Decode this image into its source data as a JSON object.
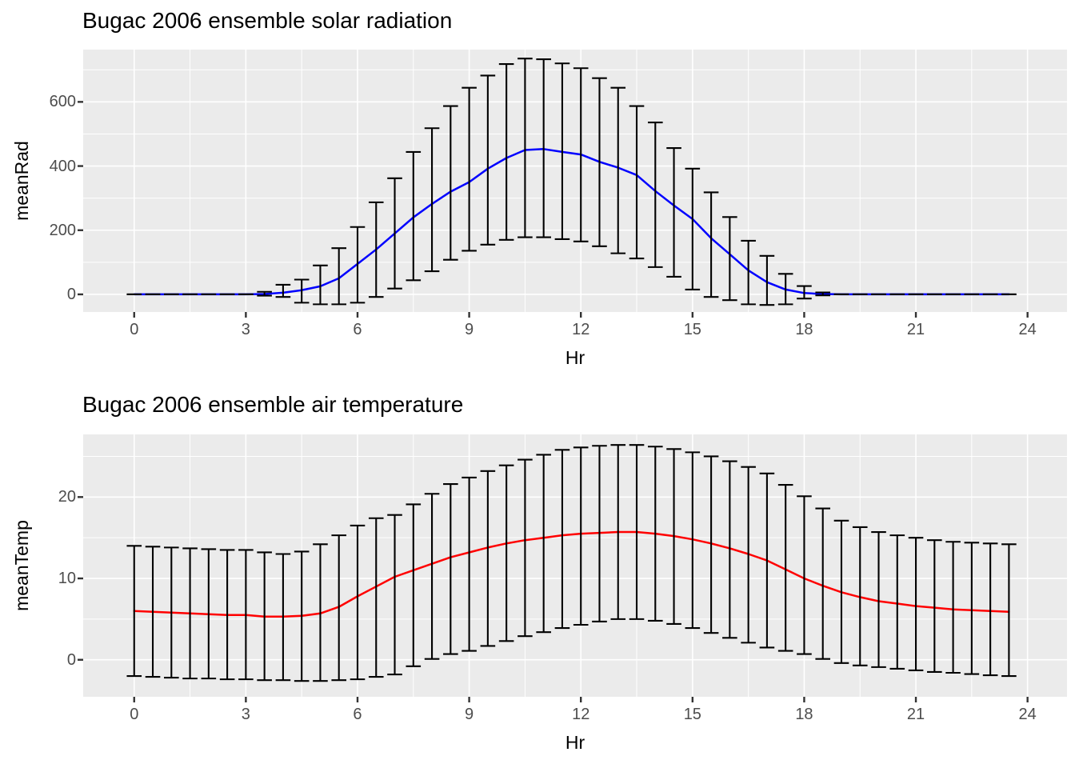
{
  "colors": {
    "page_background": "#FFFFFF",
    "panel_background": "#EBEBEB",
    "grid": "#FFFFFF",
    "error_bar": "#000000",
    "radiation_line": "#0000FF",
    "temperature_line": "#FF0000",
    "tick_label": "#4D4D4D",
    "axis_tick_mark": "#333333",
    "title_text": "#000000"
  },
  "chart_data": [
    {
      "type": "line",
      "title": "Bugac 2006 ensemble solar radiation",
      "xlabel": "Hr",
      "ylabel": "meanRad",
      "legend": "none",
      "grid": true,
      "x_ticks": [
        0,
        3,
        6,
        9,
        12,
        15,
        18,
        21,
        24
      ],
      "x_minor_ticks": [
        1.5,
        4.5,
        7.5,
        10.5,
        13.5,
        16.5,
        19.5,
        22.5
      ],
      "y_ticks": [
        0,
        200,
        400,
        600
      ],
      "y_minor_ticks": [
        100,
        300,
        500,
        700
      ],
      "xlim": [
        -1.37,
        25.06
      ],
      "ylim": [
        -55,
        763
      ],
      "x": [
        0,
        0.5,
        1,
        1.5,
        2,
        2.5,
        3,
        3.5,
        4,
        4.5,
        5,
        5.5,
        6,
        6.5,
        7,
        7.5,
        8,
        8.5,
        9,
        9.5,
        10,
        10.5,
        11,
        11.5,
        12,
        12.5,
        13,
        13.5,
        14,
        14.5,
        15,
        15.5,
        16,
        16.5,
        17,
        17.5,
        18,
        18.5,
        19,
        19.5,
        20,
        20.5,
        21,
        21.5,
        22,
        22.5,
        23,
        23.5
      ],
      "mean": [
        0,
        0,
        0,
        0,
        0,
        0,
        0,
        1,
        5,
        13,
        25,
        50,
        95,
        140,
        190,
        240,
        282,
        320,
        350,
        392,
        425,
        450,
        453,
        444,
        436,
        413,
        395,
        372,
        322,
        277,
        235,
        175,
        125,
        75,
        38,
        15,
        4,
        1,
        0,
        0,
        0,
        0,
        0,
        0,
        0,
        0,
        0,
        0
      ],
      "ymax": [
        0,
        0,
        0,
        0,
        0,
        0,
        0,
        8,
        30,
        46,
        90,
        144,
        210,
        287,
        362,
        444,
        518,
        587,
        644,
        682,
        718,
        735,
        733,
        720,
        705,
        674,
        644,
        587,
        536,
        456,
        392,
        318,
        241,
        167,
        120,
        64,
        26,
        6,
        0,
        0,
        0,
        0,
        0,
        0,
        0,
        0,
        0,
        0
      ],
      "ymin": [
        0,
        0,
        0,
        0,
        0,
        0,
        0,
        -4,
        -8,
        -26,
        -31,
        -31,
        -26,
        -8,
        18,
        44,
        72,
        108,
        136,
        155,
        170,
        178,
        178,
        172,
        165,
        150,
        128,
        112,
        85,
        55,
        15,
        -8,
        -18,
        -31,
        -33,
        -31,
        -13,
        -3,
        0,
        0,
        0,
        0,
        0,
        0,
        0,
        0,
        0,
        0
      ],
      "line_color": "#0000FF"
    },
    {
      "type": "line",
      "title": "Bugac 2006 ensemble air temperature",
      "xlabel": "Hr",
      "ylabel": "meanTemp",
      "legend": "none",
      "grid": true,
      "x_ticks": [
        0,
        3,
        6,
        9,
        12,
        15,
        18,
        21,
        24
      ],
      "x_minor_ticks": [
        1.5,
        4.5,
        7.5,
        10.5,
        13.5,
        16.5,
        19.5,
        22.5
      ],
      "y_ticks": [
        0,
        10,
        20
      ],
      "y_minor_ticks": [
        5,
        15,
        25
      ],
      "xlim": [
        -1.37,
        25.06
      ],
      "ylim": [
        -4.55,
        27.7
      ],
      "x": [
        0,
        0.5,
        1,
        1.5,
        2,
        2.5,
        3,
        3.5,
        4,
        4.5,
        5,
        5.5,
        6,
        6.5,
        7,
        7.5,
        8,
        8.5,
        9,
        9.5,
        10,
        10.5,
        11,
        11.5,
        12,
        12.5,
        13,
        13.5,
        14,
        14.5,
        15,
        15.5,
        16,
        16.5,
        17,
        17.5,
        18,
        18.5,
        19,
        19.5,
        20,
        20.5,
        21,
        21.5,
        22,
        22.5,
        23,
        23.5
      ],
      "mean": [
        6,
        5.9,
        5.8,
        5.7,
        5.6,
        5.5,
        5.5,
        5.3,
        5.3,
        5.4,
        5.7,
        6.5,
        7.8,
        9,
        10.2,
        11,
        11.8,
        12.6,
        13.2,
        13.8,
        14.3,
        14.7,
        15,
        15.3,
        15.5,
        15.6,
        15.7,
        15.7,
        15.5,
        15.2,
        14.8,
        14.3,
        13.7,
        13,
        12.2,
        11.1,
        10,
        9.1,
        8.3,
        7.7,
        7.2,
        6.9,
        6.6,
        6.4,
        6.2,
        6.1,
        6,
        5.9
      ],
      "ymax": [
        14,
        13.9,
        13.8,
        13.7,
        13.6,
        13.5,
        13.5,
        13.2,
        13,
        13.3,
        14.2,
        15.3,
        16.5,
        17.4,
        17.8,
        19.1,
        20.4,
        21.6,
        22.4,
        23.2,
        23.9,
        24.6,
        25.2,
        25.8,
        26.1,
        26.3,
        26.4,
        26.4,
        26.2,
        25.9,
        25.5,
        25,
        24.4,
        23.7,
        22.9,
        21.5,
        20.1,
        18.6,
        17.1,
        16.3,
        15.7,
        15.3,
        15,
        14.7,
        14.5,
        14.4,
        14.3,
        14.2
      ],
      "ymin": [
        -2,
        -2.1,
        -2.2,
        -2.3,
        -2.3,
        -2.4,
        -2.4,
        -2.5,
        -2.5,
        -2.6,
        -2.6,
        -2.5,
        -2.4,
        -2.1,
        -1.8,
        -0.8,
        0.1,
        0.7,
        1.1,
        1.7,
        2.3,
        2.9,
        3.4,
        3.9,
        4.3,
        4.7,
        5,
        5,
        4.8,
        4.4,
        3.9,
        3.3,
        2.7,
        2.1,
        1.5,
        1.1,
        0.7,
        0.1,
        -0.4,
        -0.7,
        -0.9,
        -1.1,
        -1.3,
        -1.5,
        -1.6,
        -1.75,
        -1.9,
        -2
      ],
      "line_color": "#FF0000"
    }
  ]
}
